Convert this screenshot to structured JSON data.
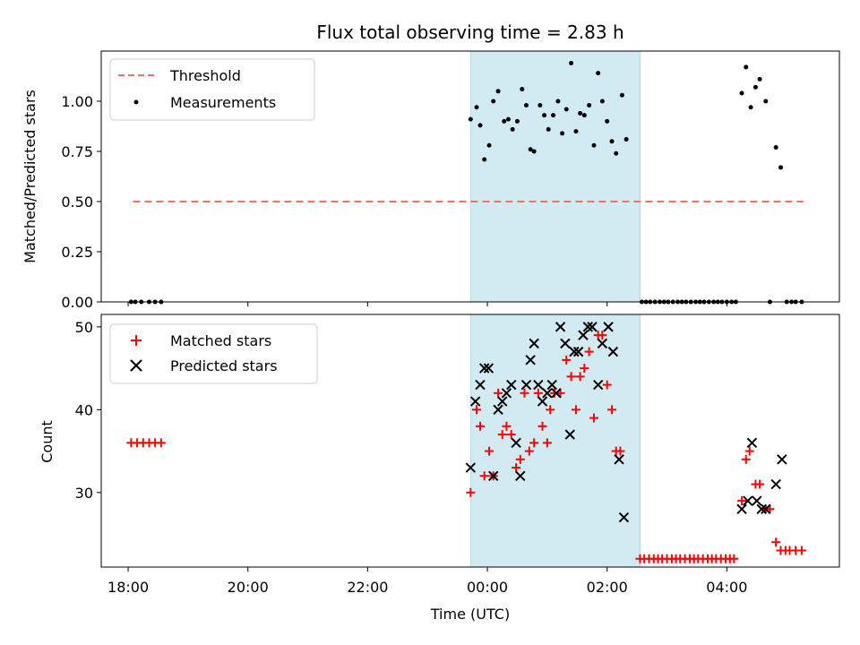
{
  "chart_data": [
    {
      "type": "scatter",
      "title": "Flux total observing time = 2.83 h",
      "xlabel": "",
      "ylabel": "Matched/Predicted stars",
      "ylim": [
        0,
        1.25
      ],
      "yticks": [
        0.0,
        0.25,
        0.5,
        0.75,
        1.0
      ],
      "ytick_labels": [
        "0.00",
        "0.25",
        "0.50",
        "0.75",
        "1.00"
      ],
      "shaded_region": {
        "x_start": 23.72,
        "x_end": 26.55,
        "color": "#add8e6"
      },
      "threshold": {
        "name": "Threshold",
        "value": 0.5,
        "x_start": 18.08,
        "x_end": 29.28,
        "color": "#ff6b6b"
      },
      "legend": {
        "location": "upper-left",
        "entries": [
          "Threshold",
          "Measurements"
        ]
      },
      "series": [
        {
          "name": "Measurements",
          "color": "#000000",
          "points": [
            [
              18.05,
              0
            ],
            [
              18.12,
              0
            ],
            [
              18.22,
              0
            ],
            [
              18.35,
              0
            ],
            [
              18.45,
              0
            ],
            [
              18.55,
              0
            ],
            [
              23.72,
              0.91
            ],
            [
              23.82,
              0.97
            ],
            [
              23.88,
              0.88
            ],
            [
              23.95,
              0.71
            ],
            [
              24.03,
              0.78
            ],
            [
              24.1,
              1.0
            ],
            [
              24.18,
              1.05
            ],
            [
              24.28,
              0.9
            ],
            [
              24.35,
              0.91
            ],
            [
              24.42,
              0.86
            ],
            [
              24.5,
              0.9
            ],
            [
              24.58,
              1.06
            ],
            [
              24.65,
              0.98
            ],
            [
              24.72,
              0.76
            ],
            [
              24.78,
              0.75
            ],
            [
              24.88,
              0.98
            ],
            [
              24.95,
              0.93
            ],
            [
              25.02,
              0.86
            ],
            [
              25.1,
              0.93
            ],
            [
              25.18,
              1.0
            ],
            [
              25.25,
              0.84
            ],
            [
              25.32,
              0.96
            ],
            [
              25.4,
              1.19
            ],
            [
              25.48,
              0.85
            ],
            [
              25.55,
              0.94
            ],
            [
              25.62,
              0.93
            ],
            [
              25.7,
              0.98
            ],
            [
              25.78,
              0.78
            ],
            [
              25.85,
              1.14
            ],
            [
              25.92,
              1.0
            ],
            [
              26.0,
              0.9
            ],
            [
              26.08,
              0.8
            ],
            [
              26.15,
              0.74
            ],
            [
              26.25,
              1.03
            ],
            [
              26.32,
              0.81
            ],
            [
              26.58,
              0
            ],
            [
              26.65,
              0
            ],
            [
              26.72,
              0
            ],
            [
              26.8,
              0
            ],
            [
              26.88,
              0
            ],
            [
              26.95,
              0
            ],
            [
              27.02,
              0
            ],
            [
              27.1,
              0
            ],
            [
              27.18,
              0
            ],
            [
              27.25,
              0
            ],
            [
              27.32,
              0
            ],
            [
              27.4,
              0
            ],
            [
              27.48,
              0
            ],
            [
              27.55,
              0
            ],
            [
              27.62,
              0
            ],
            [
              27.7,
              0
            ],
            [
              27.78,
              0
            ],
            [
              27.85,
              0
            ],
            [
              27.92,
              0
            ],
            [
              28.0,
              0
            ],
            [
              28.08,
              0
            ],
            [
              28.15,
              0
            ],
            [
              28.25,
              1.04
            ],
            [
              28.32,
              1.17
            ],
            [
              28.4,
              0.97
            ],
            [
              28.48,
              1.07
            ],
            [
              28.55,
              1.11
            ],
            [
              28.65,
              1.0
            ],
            [
              28.72,
              0
            ],
            [
              28.82,
              0.77
            ],
            [
              28.9,
              0.67
            ],
            [
              29.0,
              0
            ],
            [
              29.08,
              0
            ],
            [
              29.15,
              0
            ],
            [
              29.25,
              0
            ]
          ]
        }
      ]
    },
    {
      "type": "scatter",
      "title": "",
      "xlabel": "Time (UTC)",
      "ylabel": "Count",
      "xlim": [
        17.55,
        29.88
      ],
      "ylim": [
        21,
        51.5
      ],
      "yticks": [
        30,
        40,
        50
      ],
      "ytick_labels": [
        "30",
        "40",
        "50"
      ],
      "xticks": [
        18,
        20,
        22,
        24,
        26,
        28
      ],
      "xtick_labels": [
        "18:00",
        "20:00",
        "22:00",
        "00:00",
        "02:00",
        "04:00"
      ],
      "shaded_region": {
        "x_start": 23.72,
        "x_end": 26.55,
        "color": "#add8e6"
      },
      "legend": {
        "location": "upper-left",
        "entries": [
          "Matched stars",
          "Predicted stars"
        ]
      },
      "series": [
        {
          "name": "Matched stars",
          "marker": "plus",
          "color": "#ff0000",
          "points": [
            [
              18.05,
              36
            ],
            [
              18.15,
              36
            ],
            [
              18.25,
              36
            ],
            [
              18.35,
              36
            ],
            [
              18.45,
              36
            ],
            [
              18.55,
              36
            ],
            [
              23.72,
              30
            ],
            [
              23.82,
              40
            ],
            [
              23.88,
              38
            ],
            [
              23.95,
              32
            ],
            [
              24.03,
              35
            ],
            [
              24.1,
              32
            ],
            [
              24.18,
              42
            ],
            [
              24.25,
              37
            ],
            [
              24.32,
              38
            ],
            [
              24.4,
              37
            ],
            [
              24.48,
              33
            ],
            [
              24.55,
              34
            ],
            [
              24.62,
              42
            ],
            [
              24.7,
              35
            ],
            [
              24.78,
              36
            ],
            [
              24.85,
              42
            ],
            [
              24.92,
              38
            ],
            [
              25.0,
              36
            ],
            [
              25.05,
              40
            ],
            [
              25.12,
              42
            ],
            [
              25.22,
              42
            ],
            [
              25.32,
              46
            ],
            [
              25.4,
              44
            ],
            [
              25.48,
              40
            ],
            [
              25.55,
              44
            ],
            [
              25.62,
              45
            ],
            [
              25.7,
              47
            ],
            [
              25.78,
              39
            ],
            [
              25.85,
              49
            ],
            [
              25.92,
              49
            ],
            [
              26.0,
              43
            ],
            [
              26.08,
              40
            ],
            [
              26.15,
              35
            ],
            [
              26.22,
              35
            ],
            [
              26.55,
              22
            ],
            [
              26.62,
              22
            ],
            [
              26.7,
              22
            ],
            [
              26.78,
              22
            ],
            [
              26.85,
              22
            ],
            [
              26.92,
              22
            ],
            [
              27.0,
              22
            ],
            [
              27.08,
              22
            ],
            [
              27.15,
              22
            ],
            [
              27.22,
              22
            ],
            [
              27.3,
              22
            ],
            [
              27.38,
              22
            ],
            [
              27.45,
              22
            ],
            [
              27.52,
              22
            ],
            [
              27.6,
              22
            ],
            [
              27.68,
              22
            ],
            [
              27.75,
              22
            ],
            [
              27.82,
              22
            ],
            [
              27.9,
              22
            ],
            [
              27.98,
              22
            ],
            [
              28.05,
              22
            ],
            [
              28.12,
              22
            ],
            [
              28.25,
              29
            ],
            [
              28.32,
              34
            ],
            [
              28.38,
              35
            ],
            [
              28.48,
              31
            ],
            [
              28.55,
              31
            ],
            [
              28.65,
              28
            ],
            [
              28.72,
              28
            ],
            [
              28.82,
              24
            ],
            [
              28.9,
              23
            ],
            [
              28.98,
              23
            ],
            [
              29.05,
              23
            ],
            [
              29.15,
              23
            ],
            [
              29.25,
              23
            ]
          ]
        },
        {
          "name": "Predicted stars",
          "marker": "x",
          "color": "#000000",
          "points": [
            [
              23.72,
              33
            ],
            [
              23.8,
              41
            ],
            [
              23.88,
              43
            ],
            [
              23.95,
              45
            ],
            [
              24.02,
              45
            ],
            [
              24.1,
              32
            ],
            [
              24.18,
              40
            ],
            [
              24.25,
              41
            ],
            [
              24.32,
              42
            ],
            [
              24.4,
              43
            ],
            [
              24.48,
              36
            ],
            [
              24.55,
              32
            ],
            [
              24.65,
              43
            ],
            [
              24.72,
              46
            ],
            [
              24.78,
              48
            ],
            [
              24.85,
              43
            ],
            [
              24.92,
              41
            ],
            [
              25.0,
              42
            ],
            [
              25.08,
              43
            ],
            [
              25.15,
              42
            ],
            [
              25.22,
              50
            ],
            [
              25.3,
              48
            ],
            [
              25.38,
              37
            ],
            [
              25.45,
              47
            ],
            [
              25.52,
              47
            ],
            [
              25.6,
              49
            ],
            [
              25.68,
              50
            ],
            [
              25.75,
              50
            ],
            [
              25.85,
              43
            ],
            [
              25.92,
              48
            ],
            [
              26.02,
              50
            ],
            [
              26.1,
              47
            ],
            [
              26.2,
              34
            ],
            [
              26.28,
              27
            ],
            [
              28.25,
              28
            ],
            [
              28.35,
              29
            ],
            [
              28.42,
              36
            ],
            [
              28.5,
              29
            ],
            [
              28.58,
              28
            ],
            [
              28.65,
              28
            ],
            [
              28.82,
              31
            ],
            [
              28.92,
              34
            ]
          ]
        }
      ]
    }
  ]
}
